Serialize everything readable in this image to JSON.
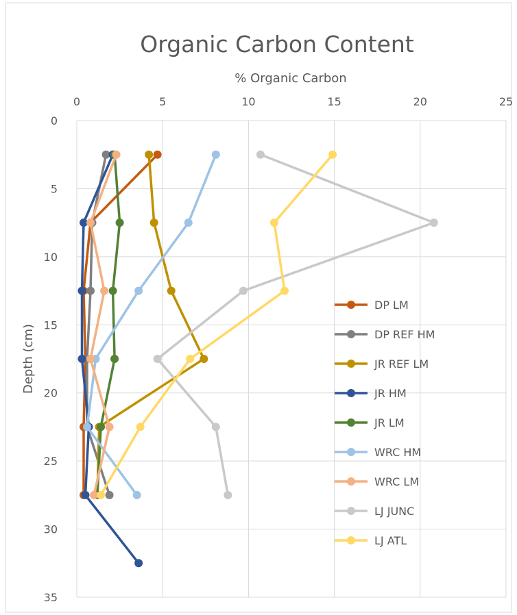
{
  "chart_data": {
    "type": "line",
    "title": "Organic Carbon Content",
    "xlabel": "% Organic Carbon",
    "ylabel": "Depth (cm)",
    "xlim": [
      0,
      25
    ],
    "ylim": [
      0,
      35
    ],
    "y_inverted": true,
    "x_axis_position": "top",
    "x_ticks": [
      0,
      5,
      10,
      15,
      20,
      25
    ],
    "y_ticks": [
      0,
      5,
      10,
      15,
      20,
      25,
      30,
      35
    ],
    "grid": true,
    "legend_position": "right",
    "series": [
      {
        "name": "DP LM",
        "color": "#c55a11",
        "x": [
          4.7,
          0.8,
          0.4,
          0.5,
          0.4,
          0.4
        ],
        "y": [
          2.5,
          7.5,
          12.5,
          17.5,
          22.5,
          27.5
        ]
      },
      {
        "name": "DP REF HM",
        "color": "#7f7f7f",
        "x": [
          1.7,
          0.9,
          0.8,
          0.6,
          0.6,
          1.9
        ],
        "y": [
          2.5,
          7.5,
          12.5,
          17.5,
          22.5,
          27.5
        ]
      },
      {
        "name": "JR REF LM",
        "color": "#bf9000",
        "x": [
          4.2,
          4.5,
          5.5,
          7.4,
          1.3,
          1.2
        ],
        "y": [
          2.5,
          7.5,
          12.5,
          17.5,
          22.5,
          27.5
        ]
      },
      {
        "name": "JR HM",
        "color": "#2f5597",
        "x": [
          2.1,
          0.4,
          0.3,
          0.3,
          0.7,
          0.5,
          3.6
        ],
        "y": [
          2.5,
          7.5,
          12.5,
          17.5,
          22.5,
          27.5,
          32.5
        ]
      },
      {
        "name": "JR LM",
        "color": "#548235",
        "x": [
          2.2,
          2.5,
          2.1,
          2.2,
          1.4,
          1.2
        ],
        "y": [
          2.5,
          7.5,
          12.5,
          17.5,
          22.5,
          27.5
        ]
      },
      {
        "name": "WRC HM",
        "color": "#9dc3e6",
        "x": [
          8.1,
          6.5,
          3.6,
          1.1,
          0.6,
          3.5
        ],
        "y": [
          2.5,
          7.5,
          12.5,
          17.5,
          22.5,
          27.5
        ]
      },
      {
        "name": "WRC LM",
        "color": "#f4b183",
        "x": [
          2.3,
          0.8,
          1.6,
          0.8,
          1.9,
          1.0
        ],
        "y": [
          2.5,
          7.5,
          12.5,
          17.5,
          22.5,
          27.5
        ]
      },
      {
        "name": "LJ JUNC",
        "color": "#c9c9c9",
        "x": [
          10.7,
          20.8,
          9.7,
          4.7,
          8.1,
          8.8
        ],
        "y": [
          2.5,
          7.5,
          12.5,
          17.5,
          22.5,
          27.5
        ]
      },
      {
        "name": "LJ ATL",
        "color": "#ffd966",
        "x": [
          14.9,
          11.5,
          12.1,
          6.6,
          3.7,
          1.4
        ],
        "y": [
          2.5,
          7.5,
          12.5,
          17.5,
          22.5,
          27.5
        ]
      }
    ]
  }
}
